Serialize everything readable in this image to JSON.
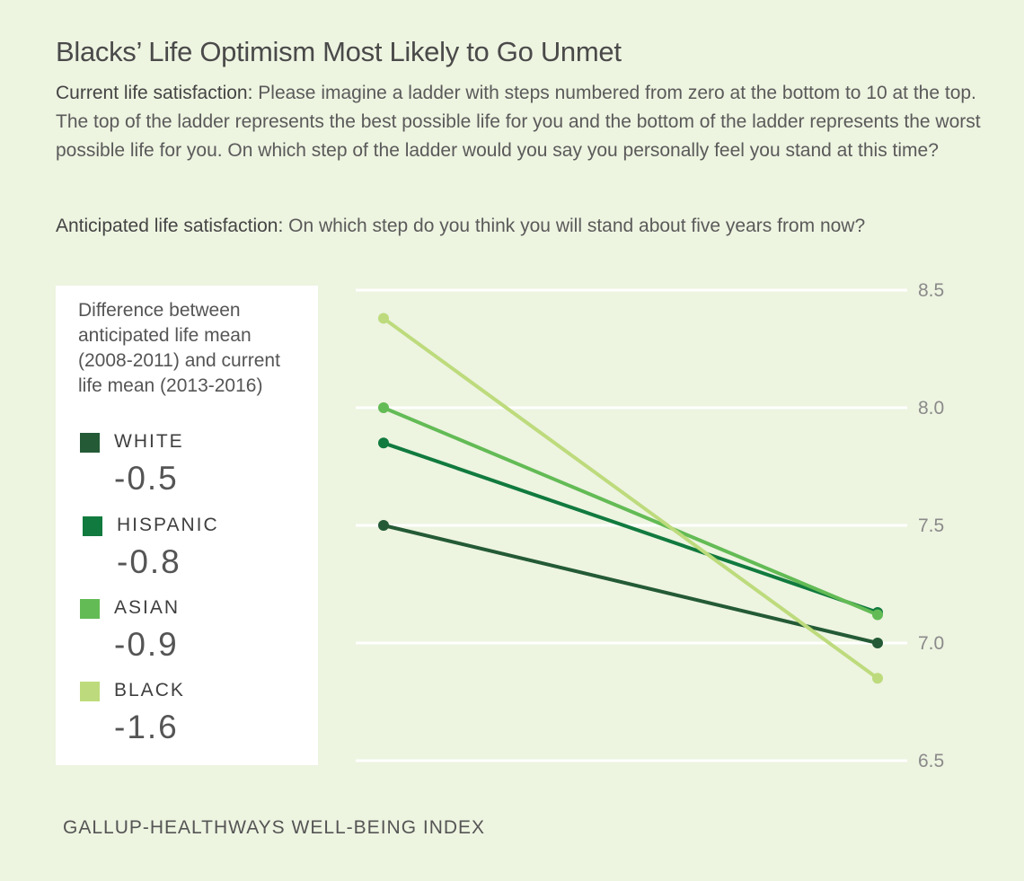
{
  "title": "Blacks’ Life Optimism Most Likely to Go Unmet",
  "intro": {
    "current_label": "Current life satisfaction:",
    "current_text": " Please imagine a ladder with steps numbered from zero at the bottom to 10 at the top. The top of the ladder represents the best possible life for you and the bottom of the ladder represents the worst possible life for you. On which step of the ladder would you say you personally feel you stand at this time?",
    "anticipated_label": "Anticipated life satisfaction:",
    "anticipated_text": " On which step do you think you will stand about five years from now?"
  },
  "legend": {
    "note": "Difference between anticipated life mean (2008-2011) and current life mean (2013-2016)",
    "items": [
      {
        "name": "WHITE",
        "diff": "-0.5",
        "color": "#245a36"
      },
      {
        "name": "HISPANIC",
        "diff": "-0.8",
        "color": "#117a3e"
      },
      {
        "name": "ASIAN",
        "diff": "-0.9",
        "color": "#63bb55"
      },
      {
        "name": "BLACK",
        "diff": "-1.6",
        "color": "#bddb7c"
      }
    ]
  },
  "chart_data": {
    "type": "line",
    "x": [
      "Anticipated life mean (2008-2011)",
      "Current life mean (2013-2016)"
    ],
    "ylim": [
      6.5,
      8.5
    ],
    "yticks": [
      "8.5",
      "8.0",
      "7.5",
      "7.0",
      "6.5"
    ],
    "grid": true,
    "series": [
      {
        "name": "WHITE",
        "values": [
          7.5,
          7.0
        ],
        "color": "#245a36"
      },
      {
        "name": "HISPANIC",
        "values": [
          7.85,
          7.13
        ],
        "color": "#117a3e"
      },
      {
        "name": "ASIAN",
        "values": [
          8.0,
          7.12
        ],
        "color": "#63bb55"
      },
      {
        "name": "BLACK",
        "values": [
          8.38,
          6.85
        ],
        "color": "#bddb7c"
      }
    ]
  },
  "source": "GALLUP-HEALTHWAYS WELL-BEING INDEX"
}
